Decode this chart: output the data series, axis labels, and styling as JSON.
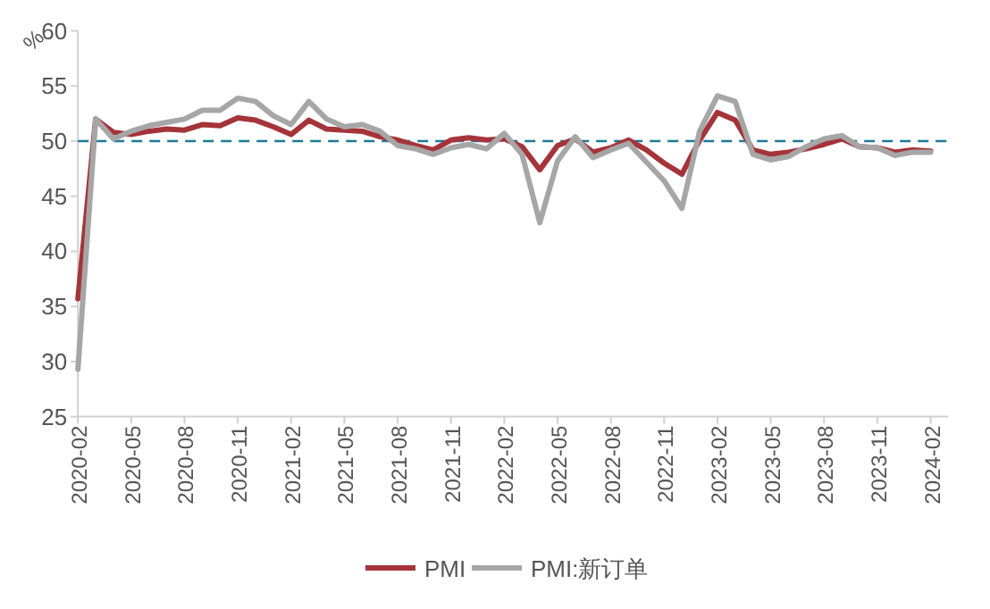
{
  "chart_data": {
    "type": "line",
    "ylabel": "%",
    "x": [
      "2020-02",
      "2020-03",
      "2020-04",
      "2020-05",
      "2020-06",
      "2020-07",
      "2020-08",
      "2020-09",
      "2020-10",
      "2020-11",
      "2020-12",
      "2021-01",
      "2021-02",
      "2021-03",
      "2021-04",
      "2021-05",
      "2021-06",
      "2021-07",
      "2021-08",
      "2021-09",
      "2021-10",
      "2021-11",
      "2021-12",
      "2022-01",
      "2022-02",
      "2022-03",
      "2022-04",
      "2022-05",
      "2022-06",
      "2022-07",
      "2022-08",
      "2022-09",
      "2022-10",
      "2022-11",
      "2022-12",
      "2023-01",
      "2023-02",
      "2023-03",
      "2023-04",
      "2023-05",
      "2023-06",
      "2023-07",
      "2023-08",
      "2023-09",
      "2023-10",
      "2023-11",
      "2023-12",
      "2024-01",
      "2024-02"
    ],
    "series": [
      {
        "name": "PMI",
        "color": "#a5343a",
        "values": [
          35.7,
          52.0,
          50.8,
          50.6,
          50.9,
          51.1,
          51.0,
          51.5,
          51.4,
          52.1,
          51.9,
          51.3,
          50.6,
          51.9,
          51.1,
          51.0,
          50.9,
          50.4,
          50.1,
          49.6,
          49.2,
          50.1,
          50.3,
          50.1,
          50.2,
          49.5,
          47.4,
          49.6,
          50.2,
          49.0,
          49.4,
          50.1,
          49.2,
          48.0,
          47.0,
          50.1,
          52.6,
          51.9,
          49.2,
          48.8,
          49.0,
          49.3,
          49.7,
          50.2,
          49.5,
          49.4,
          49.0,
          49.2,
          49.1
        ]
      },
      {
        "name": "PMI:新订单",
        "color": "#a6a6a6",
        "values": [
          29.3,
          52.0,
          50.2,
          50.9,
          51.4,
          51.7,
          52.0,
          52.8,
          52.8,
          53.9,
          53.6,
          52.3,
          51.5,
          53.6,
          52.0,
          51.3,
          51.5,
          50.9,
          49.6,
          49.3,
          48.8,
          49.4,
          49.7,
          49.3,
          50.7,
          48.8,
          42.6,
          48.2,
          50.4,
          48.5,
          49.2,
          49.8,
          48.1,
          46.4,
          43.9,
          50.9,
          54.1,
          53.6,
          48.8,
          48.3,
          48.6,
          49.5,
          50.2,
          50.5,
          49.5,
          49.4,
          48.7,
          49.0,
          49.0
        ]
      }
    ],
    "xlim": [
      "2020-02",
      "2024-03"
    ],
    "xticks": [
      "2020-02",
      "2020-05",
      "2020-08",
      "2020-11",
      "2021-02",
      "2021-05",
      "2021-08",
      "2021-11",
      "2022-02",
      "2022-05",
      "2022-08",
      "2022-11",
      "2023-02",
      "2023-05",
      "2023-08",
      "2023-11",
      "2024-02"
    ],
    "ylim": [
      25,
      60
    ],
    "yticks": [
      25,
      30,
      35,
      40,
      45,
      50,
      55,
      60
    ],
    "ref_lines": [
      {
        "axis": "y",
        "value": 50,
        "color": "#1b7a95",
        "line_style": "dashed"
      }
    ],
    "legend": "bottom"
  }
}
